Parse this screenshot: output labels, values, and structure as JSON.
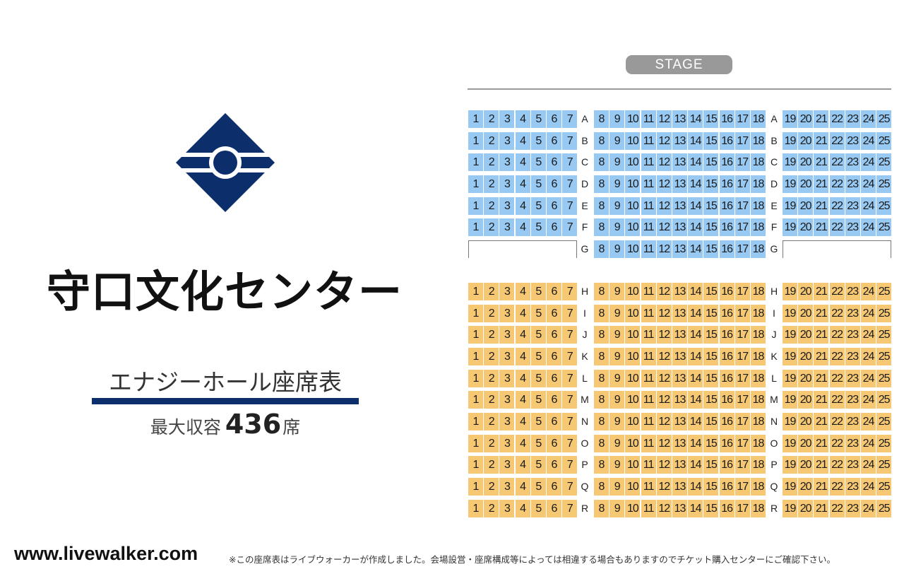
{
  "venue": {
    "name": "守口文化センター",
    "hall_title": "エナジーホール座席表",
    "capacity_label": "最大収容",
    "capacity_value": "436",
    "capacity_unit": "席"
  },
  "stage_label": "STAGE",
  "colors": {
    "logo": "#0c2e6b",
    "front_seat": "#97c9f3",
    "rear_seat": "#f6c873",
    "stage": "#999999"
  },
  "seating": {
    "front_rows": [
      "A",
      "B",
      "C",
      "D",
      "E",
      "F"
    ],
    "partial_rows": [
      "G"
    ],
    "rear_rows": [
      "H",
      "I",
      "J",
      "K",
      "L",
      "M",
      "N",
      "O",
      "P",
      "Q",
      "R"
    ],
    "left_block_seats": [
      1,
      2,
      3,
      4,
      5,
      6,
      7
    ],
    "center_block_seats": [
      8,
      9,
      10,
      11,
      12,
      13,
      14,
      15,
      16,
      17,
      18
    ],
    "right_block_seats": [
      19,
      20,
      21,
      22,
      23,
      24,
      25
    ]
  },
  "footer": {
    "site": "www.livewalker.com",
    "note": "※この座席表はライブウォーカーが作成しました。会場設営・座席構成等によっては相違する場合もありますのでチケット購入センターにご確認下さい。"
  }
}
